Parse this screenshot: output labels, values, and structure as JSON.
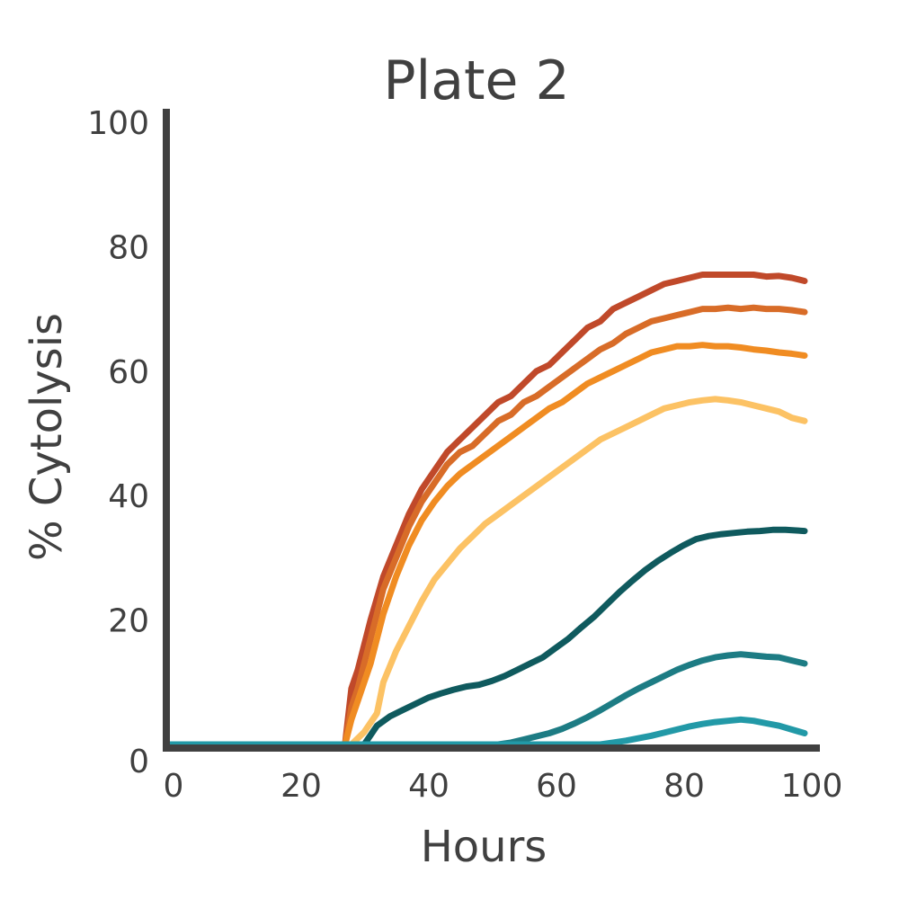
{
  "chart_data": {
    "type": "line",
    "title": "Plate 2",
    "xlabel": "Hours",
    "ylabel": "% Cytolysis",
    "xlim": [
      0,
      100
    ],
    "ylim": [
      0,
      100
    ],
    "xticks": [
      "0",
      "20",
      "40",
      "60",
      "80",
      "100"
    ],
    "yticks": [
      "0",
      "20",
      "40",
      "60",
      "80",
      "100"
    ],
    "grid": false,
    "legend": "none",
    "series": [
      {
        "color": "#c0492a",
        "x": [
          0,
          28,
          29,
          30,
          32,
          34,
          36,
          38,
          40,
          42,
          44,
          46,
          48,
          50,
          52,
          54,
          56,
          58,
          60,
          62,
          64,
          66,
          68,
          70,
          72,
          74,
          76,
          78,
          80,
          82,
          84,
          86,
          88,
          90,
          92,
          94,
          96,
          98,
          100
        ],
        "y": [
          0,
          0,
          9,
          12,
          20,
          27,
          32,
          37,
          41,
          44,
          47,
          49,
          51,
          53,
          55,
          56,
          58,
          60,
          61,
          63,
          65,
          67,
          68,
          70,
          71,
          72,
          73,
          74,
          74.5,
          75,
          75.5,
          75.5,
          75.5,
          75.5,
          75.5,
          75.2,
          75.3,
          75,
          74.5
        ]
      },
      {
        "color": "#d86c28",
        "x": [
          0,
          28,
          29,
          30,
          32,
          34,
          36,
          38,
          40,
          42,
          44,
          46,
          48,
          50,
          52,
          54,
          56,
          58,
          60,
          62,
          64,
          66,
          68,
          70,
          72,
          74,
          76,
          78,
          80,
          82,
          84,
          86,
          88,
          90,
          92,
          94,
          96,
          98,
          100
        ],
        "y": [
          0,
          0,
          6,
          9,
          17,
          25,
          30,
          35,
          39,
          42,
          45,
          47,
          48,
          50,
          52,
          53,
          55,
          56,
          57.5,
          59,
          60.5,
          62,
          63.5,
          64.5,
          66,
          67,
          68,
          68.5,
          69,
          69.5,
          70,
          70,
          70.2,
          70,
          70.2,
          70,
          70,
          69.8,
          69.5
        ]
      },
      {
        "color": "#f08c22",
        "x": [
          0,
          28,
          29,
          30,
          32,
          34,
          36,
          38,
          40,
          42,
          44,
          46,
          48,
          50,
          52,
          54,
          56,
          58,
          60,
          62,
          64,
          66,
          68,
          70,
          72,
          74,
          76,
          78,
          80,
          82,
          84,
          86,
          88,
          90,
          92,
          94,
          96,
          98,
          100
        ],
        "y": [
          0,
          0,
          4,
          7,
          13,
          21,
          27,
          32,
          36,
          39,
          41.5,
          43.5,
          45,
          46.5,
          48,
          49.5,
          51,
          52.5,
          54,
          55,
          56.5,
          58,
          59,
          60,
          61,
          62,
          63,
          63.5,
          64,
          64,
          64.2,
          64,
          64,
          63.8,
          63.5,
          63.3,
          63,
          62.8,
          62.5
        ]
      },
      {
        "color": "#fcc264",
        "x": [
          0,
          29,
          31,
          33,
          34,
          36,
          38,
          40,
          42,
          44,
          46,
          48,
          50,
          52,
          54,
          56,
          58,
          60,
          62,
          64,
          66,
          68,
          70,
          72,
          74,
          76,
          78,
          80,
          82,
          84,
          86,
          88,
          90,
          92,
          94,
          96,
          98,
          100
        ],
        "y": [
          0,
          0,
          2,
          5,
          10,
          15,
          19,
          23,
          26.5,
          29,
          31.5,
          33.5,
          35.5,
          37,
          38.5,
          40,
          41.5,
          43,
          44.5,
          46,
          47.5,
          49,
          50,
          51,
          52,
          53,
          54,
          54.5,
          55,
          55.3,
          55.5,
          55.3,
          55,
          54.5,
          54,
          53.5,
          52.5,
          52
        ]
      },
      {
        "color": "#0f5a5e",
        "x": [
          0,
          31,
          32,
          33,
          35,
          37,
          39,
          41,
          43,
          45,
          47,
          49,
          51,
          53,
          55,
          57,
          59,
          61,
          63,
          65,
          67,
          69,
          71,
          73,
          75,
          77,
          79,
          81,
          83,
          85,
          87,
          89,
          91,
          93,
          95,
          97,
          100
        ],
        "y": [
          0,
          0,
          1.5,
          3,
          4.5,
          5.5,
          6.5,
          7.5,
          8.2,
          8.8,
          9.3,
          9.6,
          10.2,
          11,
          12,
          13,
          14,
          15.5,
          17,
          18.8,
          20.5,
          22.5,
          24.5,
          26.3,
          28,
          29.5,
          30.8,
          32,
          33,
          33.5,
          33.8,
          34,
          34.2,
          34.3,
          34.5,
          34.5,
          34.3
        ]
      },
      {
        "color": "#1d7c84",
        "x": [
          0,
          52,
          54,
          56,
          58,
          60,
          62,
          64,
          66,
          68,
          70,
          72,
          74,
          76,
          78,
          80,
          82,
          84,
          86,
          88,
          90,
          92,
          94,
          96,
          98,
          100
        ],
        "y": [
          0,
          0,
          0.3,
          0.8,
          1.3,
          1.8,
          2.5,
          3.4,
          4.4,
          5.5,
          6.7,
          7.9,
          9,
          10,
          11,
          12,
          12.8,
          13.5,
          14,
          14.3,
          14.5,
          14.3,
          14.1,
          14,
          13.5,
          13
        ]
      },
      {
        "color": "#2299a7",
        "x": [
          0,
          68,
          70,
          72,
          74,
          76,
          78,
          80,
          82,
          84,
          86,
          88,
          90,
          92,
          94,
          96,
          98,
          100
        ],
        "y": [
          0,
          0,
          0.3,
          0.6,
          1,
          1.4,
          1.9,
          2.4,
          2.9,
          3.3,
          3.6,
          3.8,
          4,
          3.8,
          3.4,
          3,
          2.4,
          1.8
        ]
      }
    ]
  }
}
